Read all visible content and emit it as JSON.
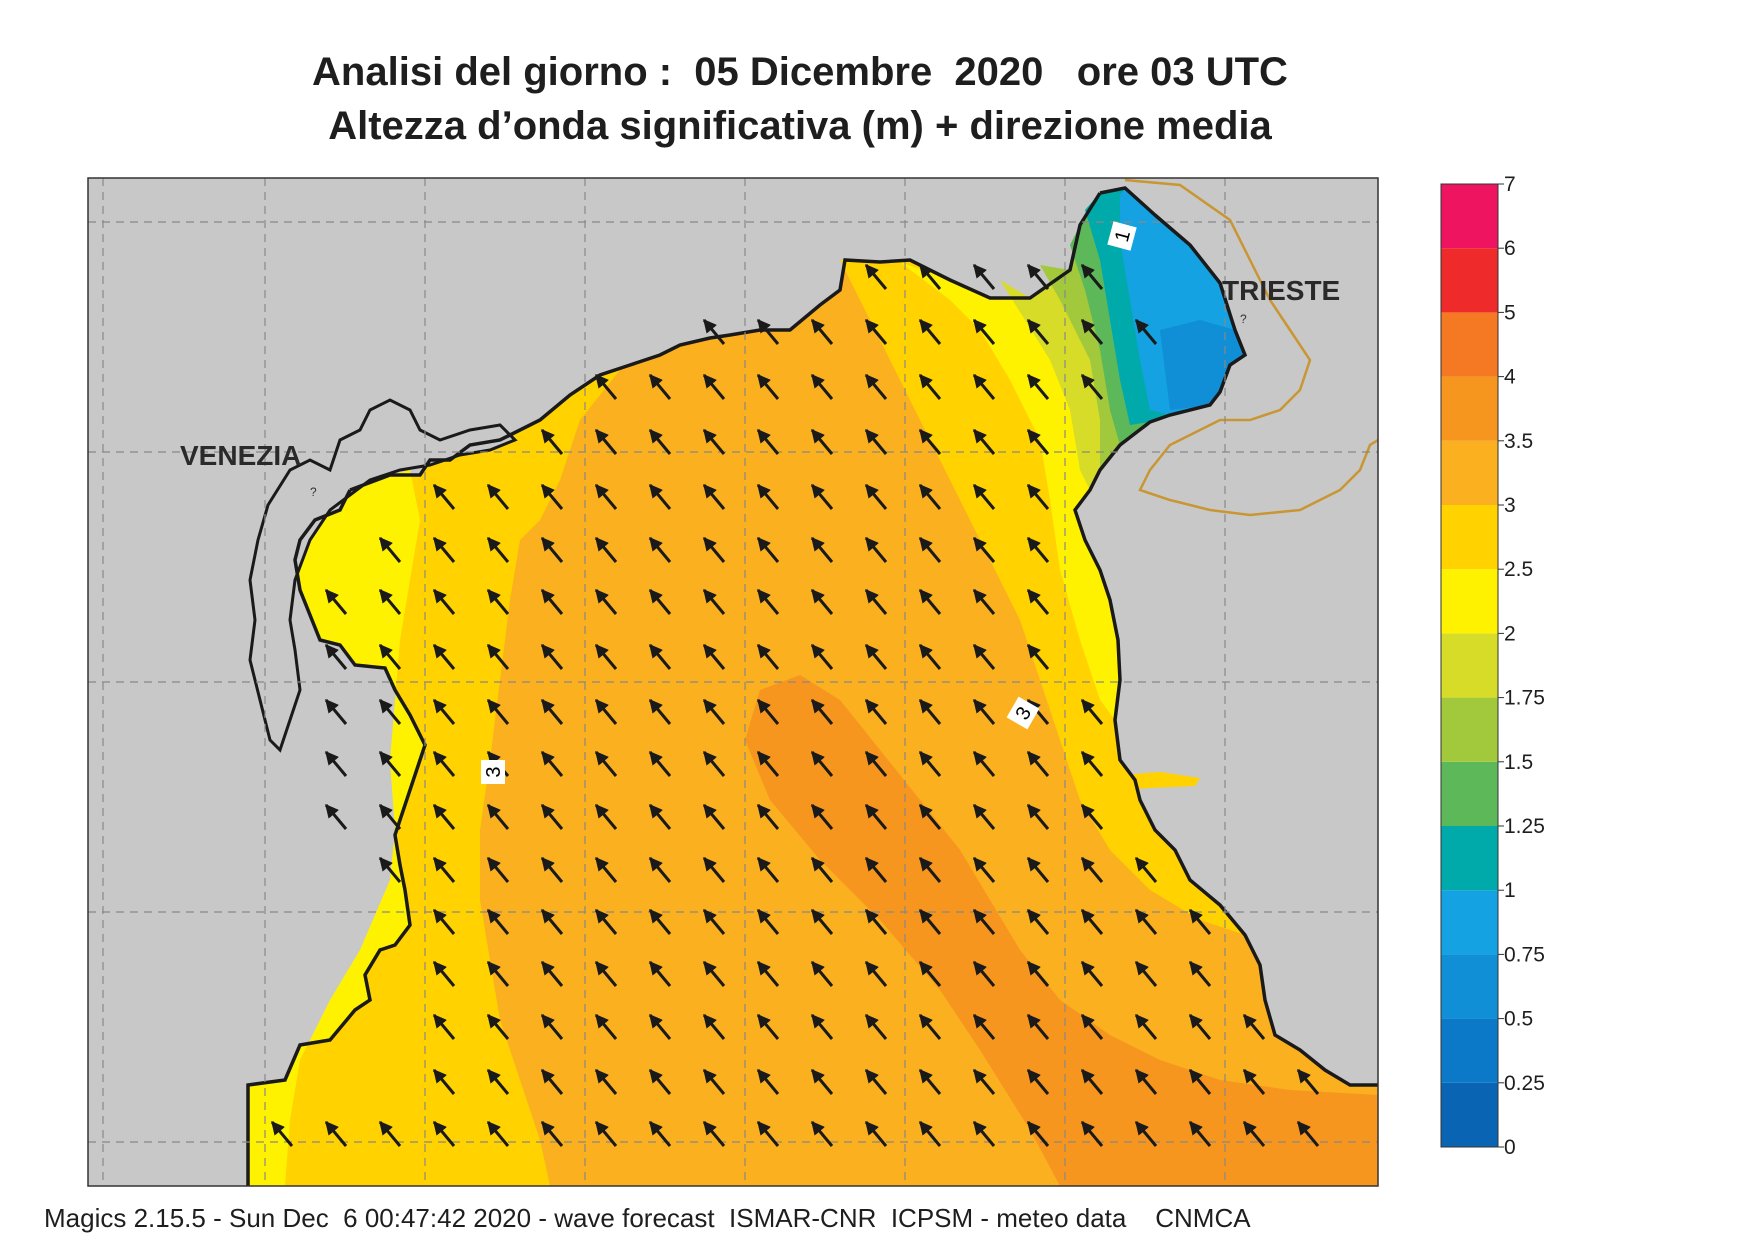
{
  "title_line_1": "Analisi del giorno :  05 Dicembre  2020   ore 03 UTC",
  "title_line_2": "Altezza d’onda significativa (m) + direzione media",
  "places": {
    "venezia": "VENEZIA",
    "trieste": "TRIESTE"
  },
  "contour_labels": [
    "3",
    "3",
    "1"
  ],
  "colorbar": {
    "ticks": [
      "0",
      "0.25",
      "0.5",
      "0.75",
      "1",
      "1.25",
      "1.5",
      "1.75",
      "2",
      "2.5",
      "3",
      "3.5",
      "4",
      "5",
      "6",
      "7"
    ],
    "colors": [
      "#0a64b4",
      "#0c78c8",
      "#108ed6",
      "#14a2e2",
      "#00aaaa",
      "#5db85a",
      "#a2c83c",
      "#d6dc28",
      "#fff200",
      "#ffd200",
      "#fbb020",
      "#f7961e",
      "#f57822",
      "#ee2a2a",
      "#ee1460"
    ]
  },
  "colors": {
    "land": "#c8c8c8",
    "coast": "#1a1a1a",
    "border": "#c89632",
    "arrow": "#1a1a1a",
    "grid": "#888888"
  },
  "wave_direction_field": "NW",
  "footer": "Magics 2.15.5 - Sun Dec  6 00:47:42 2020 - wave forecast  ISMAR-CNR  ICPSM - meteo data    CNMCA"
}
